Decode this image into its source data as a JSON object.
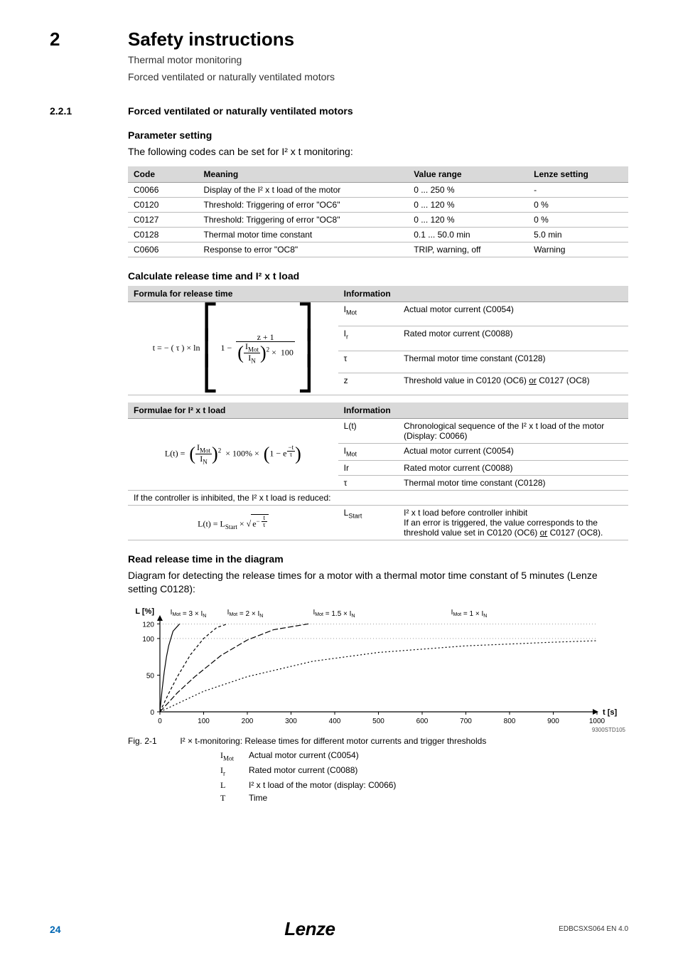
{
  "header": {
    "chapter_num": "2",
    "title": "Safety instructions",
    "subtitle1": "Thermal motor monitoring",
    "subtitle2": "Forced ventilated or naturally ventilated motors"
  },
  "section": {
    "num": "2.2.1",
    "title": "Forced ventilated or naturally ventilated motors"
  },
  "param_setting": {
    "heading": "Parameter setting",
    "intro": "The following codes can be set for I² x t monitoring:",
    "columns": [
      "Code",
      "Meaning",
      "Value range",
      "Lenze setting"
    ],
    "rows": [
      [
        "C0066",
        "Display of the I² x t load of the motor",
        "0 ... 250 %",
        "-"
      ],
      [
        "C0120",
        "Threshold: Triggering of error \"OC6\"",
        "0 ... 120 %",
        "0 %"
      ],
      [
        "C0127",
        "Threshold: Triggering of error \"OC8\"",
        "0 ... 120 %",
        "0 %"
      ],
      [
        "C0128",
        "Thermal motor time constant",
        "0.1 ... 50.0 min",
        "5.0 min"
      ],
      [
        "C0606",
        "Response to error \"OC8\"",
        "TRIP, warning, off",
        "Warning"
      ]
    ]
  },
  "calc": {
    "heading": "Calculate release time and I² x t load",
    "table1": {
      "h1": "Formula for release time",
      "h2": "Information",
      "info": [
        [
          "IMot",
          "Actual motor current (C0054)"
        ],
        [
          "Ir",
          "Rated motor current (C0088)"
        ],
        [
          "τ",
          "Thermal motor time constant (C0128)"
        ],
        [
          "z",
          "Threshold value in C0120 (OC6) or C0127 (OC8)"
        ]
      ]
    },
    "table2": {
      "h1": "Formulae for I² x t load",
      "h2": "Information",
      "info_a": [
        [
          "L(t)",
          "Chronological sequence of the I² x t load of the motor (Display: C0066)"
        ],
        [
          "IMot",
          "Actual motor current (C0054)"
        ],
        [
          "Ir",
          "Rated motor current (C0088)"
        ],
        [
          "τ",
          "Thermal motor time constant (C0128)"
        ]
      ],
      "inhibit_note": "If the controller is inhibited, the I² x t load is reduced:",
      "info_b_sym": "LStart",
      "info_b_l1": "I² x t load before controller inhibit",
      "info_b_l2": "If an error is triggered, the value corresponds to the threshold value set in C0120 (OC6) or C0127 (OC8)."
    }
  },
  "diagram": {
    "heading": "Read release time in the diagram",
    "desc": "Diagram for detecting the release times for a motor with a thermal motor time constant of 5 minutes (Lenze setting C0128):",
    "y_label": "L [%]",
    "x_label": "t [s]",
    "y_ticks": [
      0,
      50,
      100,
      120
    ],
    "x_ticks": [
      0,
      100,
      200,
      300,
      400,
      500,
      600,
      700,
      800,
      900,
      1000
    ],
    "curve_labels": [
      "IMot = 3 × IN",
      "IMot = 2 × IN",
      "IMot = 1.5 × IN",
      "IMot = 1 × IN"
    ],
    "curves": {
      "c1": [
        [
          0,
          0
        ],
        [
          5,
          30
        ],
        [
          10,
          55
        ],
        [
          15,
          75
        ],
        [
          20,
          90
        ],
        [
          30,
          110
        ],
        [
          45,
          120
        ]
      ],
      "c2": [
        [
          0,
          0
        ],
        [
          20,
          25
        ],
        [
          40,
          48
        ],
        [
          70,
          78
        ],
        [
          100,
          100
        ],
        [
          130,
          115
        ],
        [
          155,
          120
        ]
      ],
      "c3": [
        [
          0,
          0
        ],
        [
          40,
          26
        ],
        [
          80,
          48
        ],
        [
          140,
          77
        ],
        [
          200,
          98
        ],
        [
          260,
          112
        ],
        [
          340,
          120
        ]
      ],
      "c4": [
        [
          0,
          0
        ],
        [
          100,
          28
        ],
        [
          200,
          48
        ],
        [
          350,
          69
        ],
        [
          500,
          81
        ],
        [
          700,
          90
        ],
        [
          900,
          95
        ],
        [
          1000,
          97
        ]
      ]
    },
    "line_color": "#000000",
    "background": "#ffffff",
    "grid_color": "#666666",
    "chart_id": "9300STD105",
    "caption_label": "Fig. 2-1",
    "caption_text": "I² × t-monitoring: Release times for different motor currents and trigger thresholds",
    "legend": [
      [
        "IMot",
        "Actual motor current (C0054)"
      ],
      [
        "Ir",
        "Rated motor current (C0088)"
      ],
      [
        "L",
        "I² x t load of the motor (display: C0066)"
      ],
      [
        "T",
        "Time"
      ]
    ]
  },
  "footer": {
    "page": "24",
    "brand": "Lenze",
    "doc": "EDBCSXS064 EN 4.0"
  }
}
